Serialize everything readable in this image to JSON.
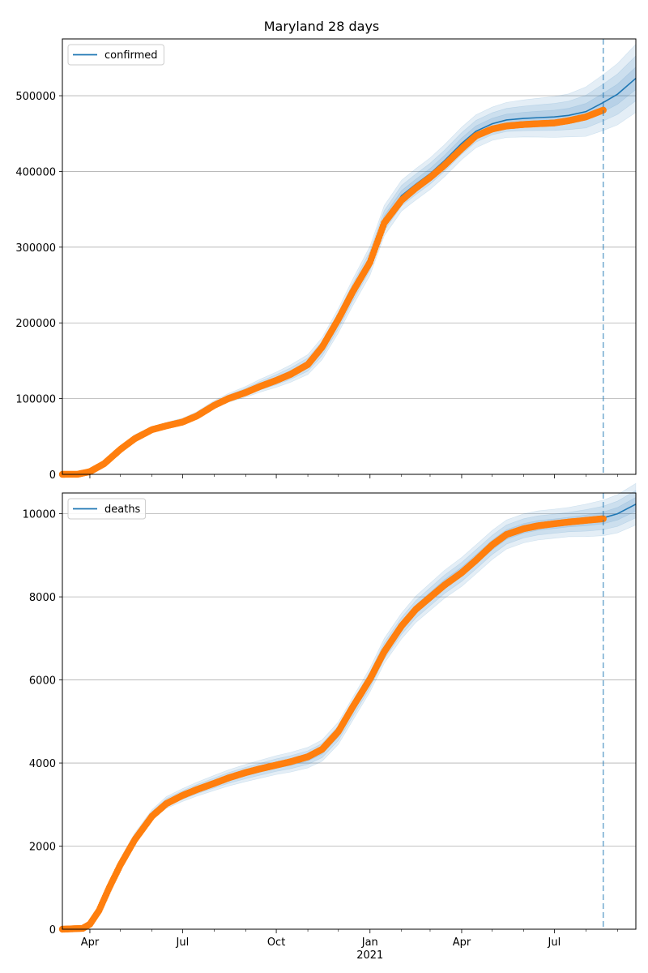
{
  "chart_data": [
    {
      "type": "line",
      "title": "Maryland 28 days",
      "xlabel": "",
      "ylabel": "",
      "grid": "y",
      "legend": {
        "position": "top-left",
        "entries": [
          "confirmed"
        ]
      },
      "x_axis": {
        "type": "date",
        "start": "2020-03-05",
        "end": "2021-09-19"
      },
      "ylim": [
        0,
        575000
      ],
      "yticks": [
        0,
        100000,
        200000,
        300000,
        400000,
        500000
      ],
      "forecast_start": "2021-08-18",
      "colors": {
        "fit": "#1f77b4",
        "observed": "#ff7f0e",
        "band": "#1f77b4",
        "forecast_line": "#1f77b4"
      },
      "series": [
        {
          "name": "confirmed",
          "kind": "fit",
          "points": [
            [
              "2020-03-05",
              0
            ],
            [
              "2020-03-20",
              200
            ],
            [
              "2020-04-01",
              4000
            ],
            [
              "2020-04-15",
              16000
            ],
            [
              "2020-05-01",
              35000
            ],
            [
              "2020-05-15",
              50000
            ],
            [
              "2020-06-01",
              60000
            ],
            [
              "2020-06-15",
              65000
            ],
            [
              "2020-07-01",
              70000
            ],
            [
              "2020-07-15",
              78000
            ],
            [
              "2020-08-01",
              92000
            ],
            [
              "2020-08-15",
              101000
            ],
            [
              "2020-09-01",
              109000
            ],
            [
              "2020-09-15",
              117000
            ],
            [
              "2020-10-01",
              125000
            ],
            [
              "2020-10-15",
              133000
            ],
            [
              "2020-11-01",
              145000
            ],
            [
              "2020-11-15",
              166000
            ],
            [
              "2020-12-01",
              203000
            ],
            [
              "2020-12-15",
              240000
            ],
            [
              "2021-01-01",
              282000
            ],
            [
              "2021-01-15",
              335000
            ],
            [
              "2021-02-01",
              368000
            ],
            [
              "2021-02-15",
              383000
            ],
            [
              "2021-03-01",
              397000
            ],
            [
              "2021-03-15",
              414000
            ],
            [
              "2021-04-01",
              437000
            ],
            [
              "2021-04-15",
              453000
            ],
            [
              "2021-05-01",
              463000
            ],
            [
              "2021-05-15",
              468000
            ],
            [
              "2021-06-01",
              470000
            ],
            [
              "2021-06-15",
              471000
            ],
            [
              "2021-07-01",
              472000
            ],
            [
              "2021-07-15",
              474000
            ],
            [
              "2021-08-01",
              479000
            ],
            [
              "2021-08-18",
              491000
            ],
            [
              "2021-09-01",
              502000
            ],
            [
              "2021-09-19",
              523000
            ]
          ],
          "band_halfwidth": [
            [
              0,
              0
            ],
            [
              0.3,
              6000
            ],
            [
              0.55,
              20000
            ],
            [
              0.75,
              22000
            ],
            [
              0.88,
              28000
            ],
            [
              1.0,
              45000
            ]
          ]
        },
        {
          "name": "",
          "kind": "observed",
          "points": [
            [
              "2020-03-05",
              0
            ],
            [
              "2020-03-20",
              100
            ],
            [
              "2020-04-01",
              3500
            ],
            [
              "2020-04-15",
              14000
            ],
            [
              "2020-05-01",
              33000
            ],
            [
              "2020-05-15",
              47000
            ],
            [
              "2020-06-01",
              59000
            ],
            [
              "2020-06-15",
              64000
            ],
            [
              "2020-07-01",
              69000
            ],
            [
              "2020-07-15",
              77000
            ],
            [
              "2020-08-01",
              91000
            ],
            [
              "2020-08-15",
              100000
            ],
            [
              "2020-09-01",
              108000
            ],
            [
              "2020-09-15",
              116000
            ],
            [
              "2020-10-01",
              124000
            ],
            [
              "2020-10-15",
              132000
            ],
            [
              "2020-11-01",
              145000
            ],
            [
              "2020-11-15",
              168000
            ],
            [
              "2020-12-01",
              205000
            ],
            [
              "2020-12-15",
              241000
            ],
            [
              "2021-01-01",
              280000
            ],
            [
              "2021-01-15",
              332000
            ],
            [
              "2021-02-01",
              362000
            ],
            [
              "2021-02-15",
              378000
            ],
            [
              "2021-03-01",
              392000
            ],
            [
              "2021-03-15",
              408000
            ],
            [
              "2021-04-01",
              430000
            ],
            [
              "2021-04-15",
              447000
            ],
            [
              "2021-05-01",
              456000
            ],
            [
              "2021-05-15",
              460000
            ],
            [
              "2021-06-01",
              462000
            ],
            [
              "2021-06-15",
              463000
            ],
            [
              "2021-07-01",
              464000
            ],
            [
              "2021-07-15",
              467000
            ],
            [
              "2021-08-01",
              472000
            ],
            [
              "2021-08-18",
              481000
            ]
          ]
        }
      ]
    },
    {
      "type": "line",
      "title": "",
      "xlabel": "",
      "ylabel": "",
      "grid": "y",
      "legend": {
        "position": "top-left",
        "entries": [
          "deaths"
        ]
      },
      "x_axis": {
        "type": "date",
        "start": "2020-03-05",
        "end": "2021-09-19"
      },
      "ylim": [
        0,
        10500
      ],
      "yticks": [
        0,
        2000,
        4000,
        6000,
        8000,
        10000
      ],
      "forecast_start": "2021-08-18",
      "colors": {
        "fit": "#1f77b4",
        "observed": "#ff7f0e",
        "band": "#1f77b4",
        "forecast_line": "#1f77b4"
      },
      "series": [
        {
          "name": "deaths",
          "kind": "fit",
          "points": [
            [
              "2020-03-05",
              0
            ],
            [
              "2020-03-25",
              20
            ],
            [
              "2020-04-01",
              150
            ],
            [
              "2020-04-10",
              500
            ],
            [
              "2020-04-20",
              1050
            ],
            [
              "2020-05-01",
              1600
            ],
            [
              "2020-05-15",
              2200
            ],
            [
              "2020-06-01",
              2750
            ],
            [
              "2020-06-15",
              3050
            ],
            [
              "2020-07-01",
              3230
            ],
            [
              "2020-07-15",
              3370
            ],
            [
              "2020-08-01",
              3520
            ],
            [
              "2020-08-15",
              3640
            ],
            [
              "2020-09-01",
              3760
            ],
            [
              "2020-09-15",
              3850
            ],
            [
              "2020-10-01",
              3950
            ],
            [
              "2020-10-15",
              4020
            ],
            [
              "2020-11-01",
              4130
            ],
            [
              "2020-11-15",
              4300
            ],
            [
              "2020-12-01",
              4720
            ],
            [
              "2020-12-15",
              5300
            ],
            [
              "2021-01-01",
              6000
            ],
            [
              "2021-01-15",
              6700
            ],
            [
              "2021-02-01",
              7300
            ],
            [
              "2021-02-15",
              7700
            ],
            [
              "2021-03-01",
              8000
            ],
            [
              "2021-03-15",
              8300
            ],
            [
              "2021-04-01",
              8600
            ],
            [
              "2021-04-15",
              8900
            ],
            [
              "2021-05-01",
              9250
            ],
            [
              "2021-05-15",
              9500
            ],
            [
              "2021-06-01",
              9650
            ],
            [
              "2021-06-15",
              9720
            ],
            [
              "2021-07-01",
              9760
            ],
            [
              "2021-07-15",
              9800
            ],
            [
              "2021-08-01",
              9840
            ],
            [
              "2021-08-18",
              9900
            ],
            [
              "2021-09-01",
              10000
            ],
            [
              "2021-09-19",
              10230
            ]
          ],
          "band_halfwidth": [
            [
              0,
              0
            ],
            [
              0.1,
              100
            ],
            [
              0.3,
              200
            ],
            [
              0.7,
              350
            ],
            [
              0.88,
              350
            ],
            [
              1.0,
              500
            ]
          ]
        },
        {
          "name": "",
          "kind": "observed",
          "points": [
            [
              "2020-03-05",
              0
            ],
            [
              "2020-03-25",
              20
            ],
            [
              "2020-04-01",
              120
            ],
            [
              "2020-04-10",
              450
            ],
            [
              "2020-04-20",
              1000
            ],
            [
              "2020-05-01",
              1550
            ],
            [
              "2020-05-15",
              2150
            ],
            [
              "2020-06-01",
              2720
            ],
            [
              "2020-06-15",
              3020
            ],
            [
              "2020-07-01",
              3220
            ],
            [
              "2020-07-15",
              3360
            ],
            [
              "2020-08-01",
              3510
            ],
            [
              "2020-08-15",
              3640
            ],
            [
              "2020-09-01",
              3770
            ],
            [
              "2020-09-15",
              3860
            ],
            [
              "2020-10-01",
              3950
            ],
            [
              "2020-10-15",
              4030
            ],
            [
              "2020-11-01",
              4150
            ],
            [
              "2020-11-15",
              4330
            ],
            [
              "2020-12-01",
              4760
            ],
            [
              "2020-12-15",
              5350
            ],
            [
              "2021-01-01",
              6020
            ],
            [
              "2021-01-15",
              6680
            ],
            [
              "2021-02-01",
              7300
            ],
            [
              "2021-02-15",
              7700
            ],
            [
              "2021-03-01",
              7990
            ],
            [
              "2021-03-15",
              8280
            ],
            [
              "2021-04-01",
              8580
            ],
            [
              "2021-04-15",
              8880
            ],
            [
              "2021-05-01",
              9250
            ],
            [
              "2021-05-15",
              9500
            ],
            [
              "2021-06-01",
              9640
            ],
            [
              "2021-06-15",
              9710
            ],
            [
              "2021-07-01",
              9760
            ],
            [
              "2021-07-15",
              9800
            ],
            [
              "2021-08-01",
              9840
            ],
            [
              "2021-08-18",
              9880
            ]
          ]
        }
      ]
    }
  ],
  "x_tick_labels": [
    {
      "date": "2020-04-01",
      "label": "Apr"
    },
    {
      "date": "2020-07-01",
      "label": "Jul"
    },
    {
      "date": "2020-10-01",
      "label": "Oct"
    },
    {
      "date": "2021-01-01",
      "label": "Jan"
    },
    {
      "date": "2021-04-01",
      "label": "Apr"
    },
    {
      "date": "2021-07-01",
      "label": "Jul"
    }
  ],
  "x_year_label": {
    "date": "2021-01-01",
    "label": "2021"
  },
  "x_minor_months": [
    "2020-05-01",
    "2020-06-01",
    "2020-08-01",
    "2020-09-01",
    "2020-11-01",
    "2020-12-01",
    "2021-02-01",
    "2021-03-01",
    "2021-05-01",
    "2021-06-01",
    "2021-08-01",
    "2021-09-01"
  ]
}
